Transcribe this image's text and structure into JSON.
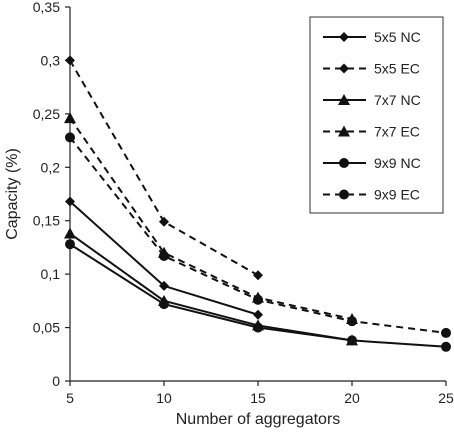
{
  "chart_data": {
    "type": "line",
    "xlabel": "Number of aggregators",
    "ylabel": "Capacity (%)",
    "x_ticks": [
      "5",
      "10",
      "15",
      "20",
      "25"
    ],
    "y_ticks": [
      "0",
      "0,05",
      "0,1",
      "0,15",
      "0,2",
      "0,25",
      "0,3",
      "0,35"
    ],
    "xlim": [
      5,
      25
    ],
    "ylim": [
      0,
      0.35
    ],
    "grid": false,
    "legend_position": "top-right",
    "series": [
      {
        "name": "5x5 NC",
        "dash": "solid",
        "marker": "diamond",
        "x": [
          5,
          10,
          15
        ],
        "y": [
          0.168,
          0.089,
          0.062
        ]
      },
      {
        "name": "5x5 EC",
        "dash": "dashed",
        "marker": "diamond",
        "x": [
          5,
          10,
          15
        ],
        "y": [
          0.3,
          0.149,
          0.099
        ]
      },
      {
        "name": "7x7 NC",
        "dash": "solid",
        "marker": "triangle",
        "x": [
          5,
          10,
          15,
          20
        ],
        "y": [
          0.138,
          0.075,
          0.052,
          0.038
        ]
      },
      {
        "name": "7x7 EC",
        "dash": "dashed",
        "marker": "triangle",
        "x": [
          5,
          10,
          15,
          20
        ],
        "y": [
          0.246,
          0.12,
          0.078,
          0.058
        ]
      },
      {
        "name": "9x9 NC",
        "dash": "solid",
        "marker": "circle",
        "x": [
          5,
          10,
          15,
          20,
          25
        ],
        "y": [
          0.128,
          0.072,
          0.05,
          0.038,
          0.032
        ]
      },
      {
        "name": "9x9 EC",
        "dash": "dashed",
        "marker": "circle",
        "x": [
          5,
          10,
          15,
          20,
          25
        ],
        "y": [
          0.228,
          0.117,
          0.076,
          0.056,
          0.045
        ]
      }
    ]
  }
}
